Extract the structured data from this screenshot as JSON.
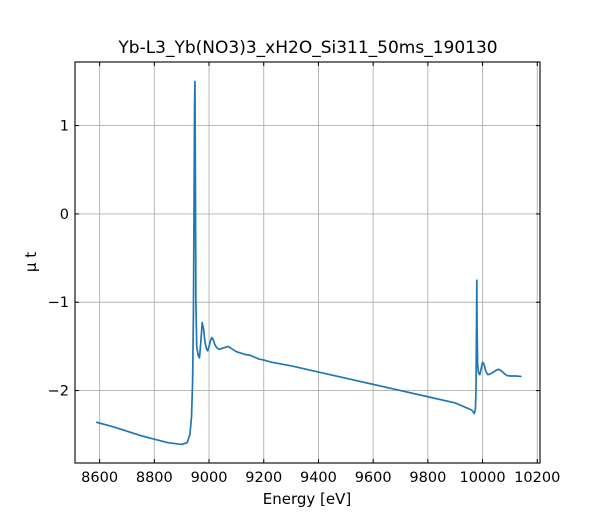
{
  "chart_data": {
    "type": "line",
    "title": "Yb-L3_Yb(NO3)3_xH2O_Si311_50ms_190130",
    "xlabel": "Energy [eV]",
    "ylabel": "μ t",
    "xlim": [
      8510,
      10210
    ],
    "ylim": [
      -2.82,
      1.72
    ],
    "xticks": [
      8600,
      8800,
      9000,
      9200,
      9400,
      9600,
      9800,
      10000,
      10200
    ],
    "yticks": [
      -2,
      -1,
      0,
      1
    ],
    "ytick_labels": [
      "−2",
      "−1",
      "0",
      "1"
    ],
    "grid": true,
    "legend": "none",
    "colors": {
      "series": "#1f77b4"
    },
    "series": [
      {
        "x": [
          8590,
          8650,
          8700,
          8750,
          8800,
          8850,
          8900,
          8920,
          8930,
          8936,
          8940,
          8943,
          8945,
          8947,
          8948.5,
          8950,
          8952,
          8955,
          8960,
          8965,
          8970,
          8975,
          8980,
          8985,
          8990,
          8995,
          9000,
          9005,
          9010,
          9015,
          9020,
          9025,
          9030,
          9035,
          9040,
          9050,
          9060,
          9070,
          9080,
          9090,
          9100,
          9110,
          9120,
          9130,
          9150,
          9180,
          9200,
          9230,
          9300,
          9400,
          9500,
          9600,
          9700,
          9800,
          9900,
          9960,
          9970,
          9974,
          9976,
          9978,
          9979,
          9980,
          9982,
          9985,
          9990,
          9995,
          10000,
          10005,
          10010,
          10015,
          10020,
          10030,
          10040,
          10050,
          10060,
          10070,
          10080,
          10090,
          10100,
          10120,
          10140
        ],
        "y": [
          -2.36,
          -2.41,
          -2.46,
          -2.51,
          -2.55,
          -2.59,
          -2.61,
          -2.59,
          -2.5,
          -2.3,
          -1.9,
          -1.1,
          0.0,
          1.2,
          1.5,
          0.5,
          -1.0,
          -1.5,
          -1.6,
          -1.63,
          -1.45,
          -1.23,
          -1.3,
          -1.45,
          -1.52,
          -1.55,
          -1.5,
          -1.44,
          -1.4,
          -1.42,
          -1.47,
          -1.5,
          -1.52,
          -1.53,
          -1.53,
          -1.52,
          -1.51,
          -1.5,
          -1.52,
          -1.54,
          -1.56,
          -1.57,
          -1.58,
          -1.59,
          -1.6,
          -1.64,
          -1.655,
          -1.68,
          -1.72,
          -1.79,
          -1.86,
          -1.93,
          -2.0,
          -2.07,
          -2.14,
          -2.22,
          -2.26,
          -2.2,
          -2.0,
          -1.2,
          -0.75,
          -1.3,
          -1.7,
          -1.8,
          -1.82,
          -1.75,
          -1.68,
          -1.7,
          -1.76,
          -1.8,
          -1.82,
          -1.81,
          -1.79,
          -1.77,
          -1.76,
          -1.78,
          -1.81,
          -1.83,
          -1.835,
          -1.835,
          -1.84
        ]
      }
    ]
  }
}
